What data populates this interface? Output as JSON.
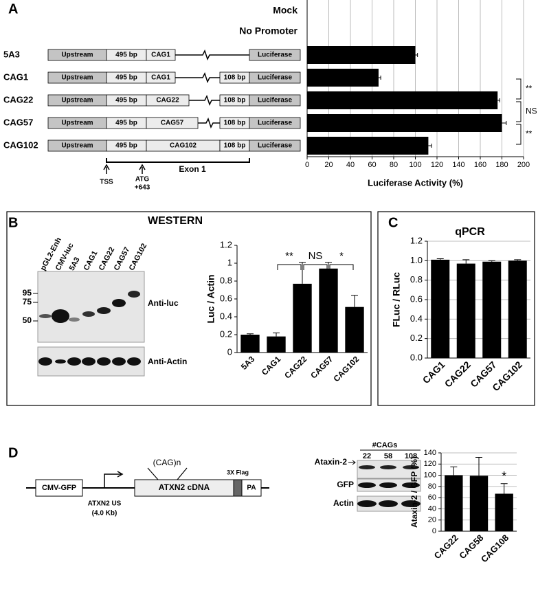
{
  "panel_letters": [
    "A",
    "B",
    "C",
    "D"
  ],
  "constructs": {
    "rows": [
      [
        "Upstream",
        "495 bp",
        "CAG1",
        "Luciferase"
      ],
      [
        "Upstream",
        "495 bp",
        "CAG1",
        "108 bp",
        "Luciferase"
      ],
      [
        "Upstream",
        "495 bp",
        "CAG22",
        "108 bp",
        "Luciferase"
      ],
      [
        "Upstream",
        "495 bp",
        "CAG57",
        "108 bp",
        "Luciferase"
      ],
      [
        "Upstream",
        "495 bp",
        "CAG102",
        "108 bp",
        "Luciferase"
      ]
    ],
    "tss": "TSS",
    "atg": "ATG",
    "atg_pos": "+643",
    "exon": "Exon 1"
  },
  "western": {
    "title": "WESTERN",
    "lanes": [
      "pGL2-Enh",
      "CMV-luc",
      "5A3",
      "CAG1",
      "CAG22",
      "CAG57",
      "CAG102"
    ],
    "markers": [
      "95",
      "75",
      "50"
    ],
    "antibodies": [
      "Anti-luc",
      "Anti-Actin"
    ]
  },
  "ataxin": {
    "construct": [
      "CMV-GFP",
      "(CAG)n",
      "ATXN2 cDNA",
      "3X Flag",
      "PA",
      "ATXN2 US",
      "(4.0 Kb)"
    ],
    "blot_header": "#CAGs",
    "blot_lanes": [
      "22",
      "58",
      "108"
    ],
    "blot_rows": [
      "Ataxin-2",
      "GFP",
      "Actin"
    ]
  },
  "chart_data": [
    {
      "type": "bar",
      "orientation": "horizontal",
      "categories": [
        "Mock",
        "No Promoter",
        "5A3",
        "CAG1",
        "CAG22",
        "CAG57",
        "CAG102"
      ],
      "values": [
        0,
        0,
        100,
        66,
        176,
        180,
        112
      ],
      "errors": [
        0,
        0,
        2,
        2,
        2,
        4,
        3
      ],
      "color": "#000000",
      "xlim": [
        0,
        200
      ],
      "xticks": [
        0,
        20,
        40,
        60,
        80,
        100,
        120,
        140,
        160,
        180,
        200
      ],
      "xlabel": "Luciferase Activity (%)",
      "grid": true,
      "annotations": [
        "**",
        "NS",
        "**"
      ]
    },
    {
      "type": "bar",
      "categories": [
        "5A3",
        "CAG1",
        "CAG22",
        "CAG57",
        "CAG102"
      ],
      "values": [
        0.2,
        0.18,
        0.77,
        0.94,
        0.51
      ],
      "errors": [
        0.01,
        0.04,
        0.24,
        0.07,
        0.13
      ],
      "color": "#000000",
      "ylim": [
        0,
        1.2
      ],
      "yticks": [
        0,
        0.2,
        0.4,
        0.6,
        0.8,
        1,
        1.2
      ],
      "ylabel": "Luc / Actin",
      "grid": false,
      "annotations": [
        "**",
        "NS",
        "*"
      ]
    },
    {
      "type": "bar",
      "title": "qPCR",
      "categories": [
        "CAG1",
        "CAG22",
        "CAG57",
        "CAG102"
      ],
      "values": [
        1.01,
        0.97,
        0.99,
        1.0
      ],
      "errors": [
        0.01,
        0.04,
        0.01,
        0.01
      ],
      "color": "#000000",
      "ylim": [
        0,
        1.2
      ],
      "yticks": [
        {
          "value": 0,
          "label": "0.0"
        },
        {
          "value": 0.2,
          "label": "0.2"
        },
        {
          "value": 0.4,
          "label": "0.4"
        },
        {
          "value": 0.6,
          "label": "0.6"
        },
        {
          "value": 0.8,
          "label": "0.8"
        },
        {
          "value": 1,
          "label": "1.0"
        },
        {
          "value": 1.2,
          "label": "1.2"
        }
      ],
      "ylabel": "FLuc / RLuc",
      "grid": true
    },
    {
      "type": "bar",
      "categories": [
        "CAG22",
        "CAG58",
        "CAG108"
      ],
      "values": [
        100,
        99,
        67
      ],
      "errors": [
        15,
        33,
        18
      ],
      "color": "#000000",
      "ylim": [
        0,
        140
      ],
      "yticks": [
        0,
        20,
        40,
        60,
        80,
        100,
        120,
        140
      ],
      "ylabel": "Ataxin-2 / GFP (%)",
      "grid": true,
      "annotations": [
        "*"
      ]
    }
  ]
}
